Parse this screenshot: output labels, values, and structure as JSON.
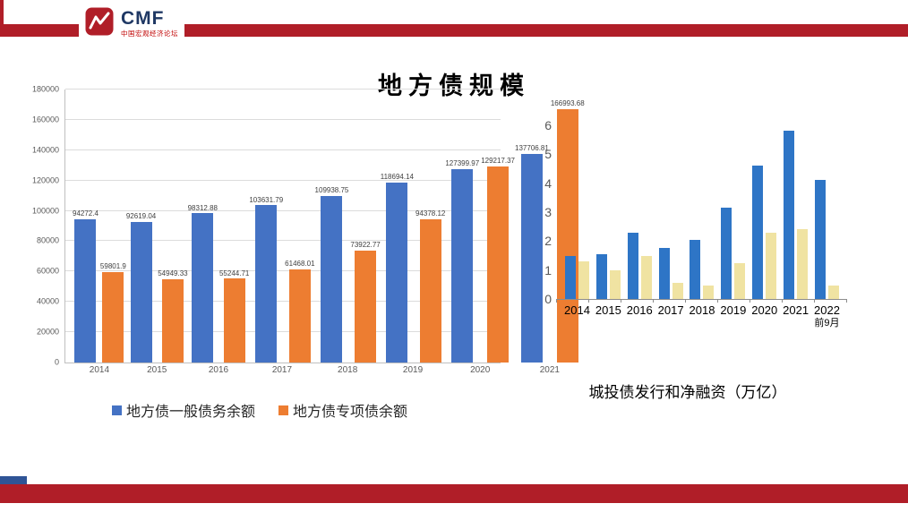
{
  "logo": {
    "brand": "CMF",
    "subtitle": "中国宏观经济论坛"
  },
  "title": "地方债规模",
  "chart_data": [
    {
      "type": "bar",
      "title": "",
      "categories": [
        "2014",
        "2015",
        "2016",
        "2017",
        "2018",
        "2019",
        "2020",
        "2021"
      ],
      "series": [
        {
          "name": "地方债一般债务余额",
          "color": "#4472c4",
          "values": [
            94272.4,
            92619.04,
            98312.88,
            103631.79,
            109938.75,
            118694.14,
            127399.97,
            137706.81
          ]
        },
        {
          "name": "地方债专项债余额",
          "color": "#ed7d31",
          "values": [
            59801.9,
            54949.33,
            55244.71,
            61468.01,
            73922.77,
            94378.12,
            129217.37,
            166993.68
          ]
        }
      ],
      "ylim": [
        0,
        180000
      ],
      "ytick_step": 20000,
      "grid": true,
      "data_labels": true,
      "legend_position": "bottom"
    },
    {
      "type": "bar",
      "title": "",
      "caption": "城投债发行和净融资（万亿）",
      "categories": [
        "2014",
        "2015",
        "2016",
        "2017",
        "2018",
        "2019",
        "2020",
        "2021",
        "2022"
      ],
      "x_note": "前9月",
      "series": [
        {
          "name": "series-blue",
          "color": "#2e75c6",
          "values": [
            1.5,
            1.55,
            2.3,
            1.75,
            2.05,
            3.15,
            4.6,
            5.8,
            4.1
          ]
        },
        {
          "name": "series-yellow",
          "color": "#f0e3a2",
          "values": [
            1.3,
            1.0,
            1.5,
            0.55,
            0.45,
            1.25,
            2.3,
            2.4,
            0.45
          ]
        }
      ],
      "ylim": [
        0,
        6
      ],
      "ytick_step": 1,
      "grid": false,
      "data_labels": false,
      "legend_position": "none"
    }
  ]
}
